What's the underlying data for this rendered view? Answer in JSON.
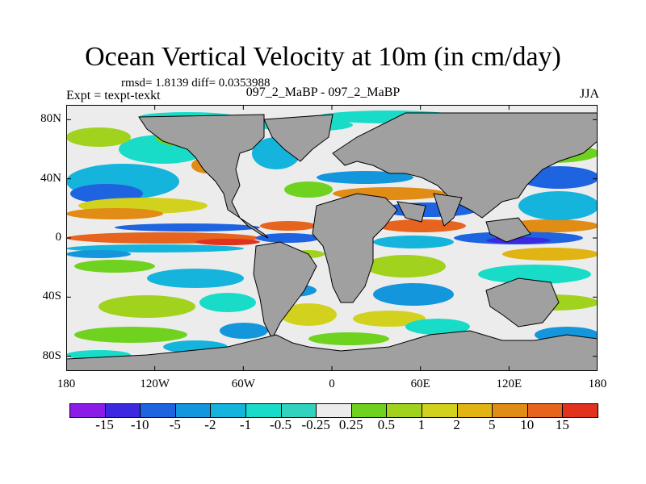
{
  "title": "Ocean Vertical Velocity at 10m (in cm/day)",
  "stats_text": "rmsd= 1.8139 diff= 0.0353988",
  "expt_text": "Expt = texpt-texkt",
  "runs_text": "097_2_MaBP - 097_2_MaBP",
  "season_text": "JJA",
  "lat_labels": [
    {
      "text": "80N",
      "lat": 80
    },
    {
      "text": "40N",
      "lat": 40
    },
    {
      "text": "0",
      "lat": 0
    },
    {
      "text": "40S",
      "lat": -40
    },
    {
      "text": "80S",
      "lat": -80
    }
  ],
  "lon_labels": [
    {
      "text": "180",
      "lon": -180
    },
    {
      "text": "120W",
      "lon": -120
    },
    {
      "text": "60W",
      "lon": -60
    },
    {
      "text": "0",
      "lon": 0
    },
    {
      "text": "60E",
      "lon": 60
    },
    {
      "text": "120E",
      "lon": 120
    },
    {
      "text": "180",
      "lon": 180
    }
  ],
  "colorbar": {
    "colors": [
      "#8b1be6",
      "#3c28e0",
      "#1e64e0",
      "#1496dc",
      "#14b4dc",
      "#18dcc8",
      "#32d2be",
      "#ececec",
      "#6ed21e",
      "#a0d21e",
      "#d2d21e",
      "#e1b414",
      "#e18c14",
      "#e6641e",
      "#e1321e"
    ],
    "labels": [
      "-15",
      "-10",
      "-5",
      "-2",
      "-1",
      "-0.5",
      "-0.25",
      "0.25",
      "0.5",
      "1",
      "2",
      "5",
      "10",
      "15"
    ]
  },
  "land_color": "#a0a0a0"
}
